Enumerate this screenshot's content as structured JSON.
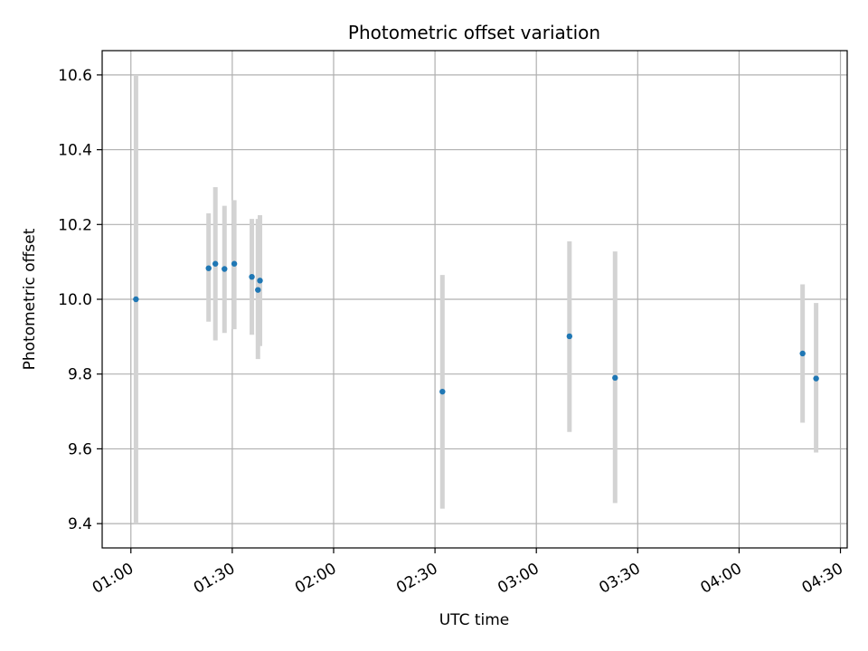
{
  "chart_data": {
    "type": "scatter",
    "title": "Photometric offset variation",
    "xlabel": "UTC time",
    "ylabel": "Photometric offset",
    "x_unit": "minutes since 01:00 UTC",
    "xlim": [
      -8.5,
      212
    ],
    "ylim": [
      9.335,
      10.665
    ],
    "xticks": [
      {
        "value": 0,
        "label": "01:00"
      },
      {
        "value": 30,
        "label": "01:30"
      },
      {
        "value": 60,
        "label": "02:00"
      },
      {
        "value": 90,
        "label": "02:30"
      },
      {
        "value": 120,
        "label": "03:00"
      },
      {
        "value": 150,
        "label": "03:30"
      },
      {
        "value": 180,
        "label": "04:00"
      },
      {
        "value": 210,
        "label": "04:30"
      }
    ],
    "yticks": [
      {
        "value": 9.4,
        "label": "9.4"
      },
      {
        "value": 9.6,
        "label": "9.6"
      },
      {
        "value": 9.8,
        "label": "9.8"
      },
      {
        "value": 10.0,
        "label": "10.0"
      },
      {
        "value": 10.2,
        "label": "10.2"
      },
      {
        "value": 10.4,
        "label": "10.4"
      },
      {
        "value": 10.6,
        "label": "10.6"
      }
    ],
    "grid": true,
    "marker_color": "#1f77b4",
    "errorbar_color": "#d3d3d3",
    "points": [
      {
        "x": 1.5,
        "y": 10.0,
        "err_low": 9.4,
        "err_high": 10.6
      },
      {
        "x": 23.0,
        "y": 10.083,
        "err_low": 9.94,
        "err_high": 10.23
      },
      {
        "x": 25.0,
        "y": 10.095,
        "err_low": 9.89,
        "err_high": 10.3
      },
      {
        "x": 27.7,
        "y": 10.081,
        "err_low": 9.91,
        "err_high": 10.25
      },
      {
        "x": 30.6,
        "y": 10.095,
        "err_low": 9.92,
        "err_high": 10.265
      },
      {
        "x": 35.8,
        "y": 10.06,
        "err_low": 9.905,
        "err_high": 10.215
      },
      {
        "x": 37.6,
        "y": 10.025,
        "err_low": 9.84,
        "err_high": 10.215
      },
      {
        "x": 38.2,
        "y": 10.05,
        "err_low": 9.875,
        "err_high": 10.225
      },
      {
        "x": 92.2,
        "y": 9.753,
        "err_low": 9.44,
        "err_high": 10.065
      },
      {
        "x": 129.8,
        "y": 9.901,
        "err_low": 9.645,
        "err_high": 10.155
      },
      {
        "x": 143.3,
        "y": 9.79,
        "err_low": 9.455,
        "err_high": 10.128
      },
      {
        "x": 198.8,
        "y": 9.855,
        "err_low": 9.67,
        "err_high": 10.04
      },
      {
        "x": 202.8,
        "y": 9.788,
        "err_low": 9.59,
        "err_high": 9.99
      }
    ]
  }
}
